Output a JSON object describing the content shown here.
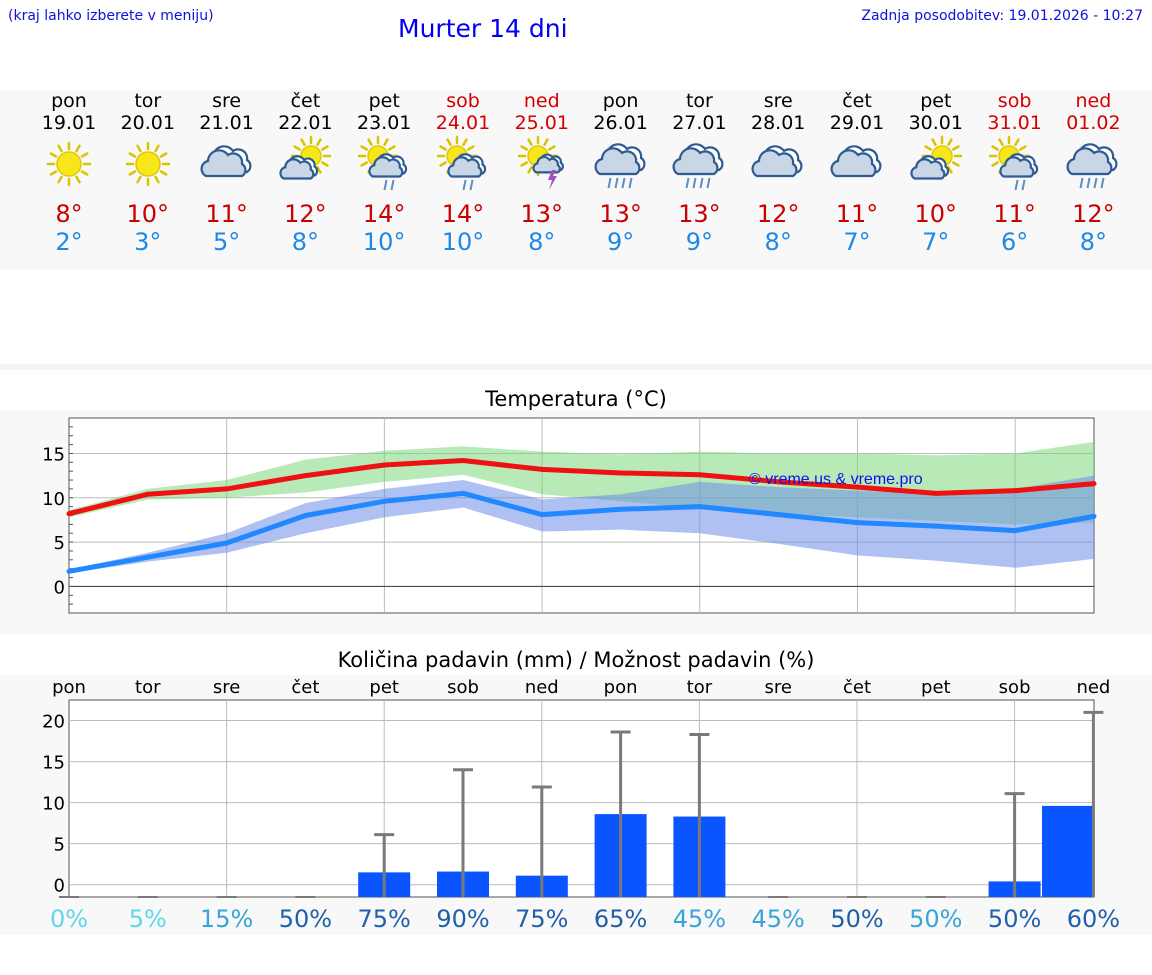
{
  "header": {
    "hint": "(kraj lahko izberete v meniju)",
    "title": "Murter 14 dni",
    "updated": "Zadnja posodobitev: 19.01.2026 - 10:27"
  },
  "days": [
    {
      "name": "pon",
      "date": "19.01",
      "weekend": false,
      "icon": "sunny-icon",
      "tmax": "8°",
      "tmin": "2°"
    },
    {
      "name": "tor",
      "date": "20.01",
      "weekend": false,
      "icon": "sunny-icon",
      "tmax": "10°",
      "tmin": "3°"
    },
    {
      "name": "sre",
      "date": "21.01",
      "weekend": false,
      "icon": "cloudy-icon",
      "tmax": "11°",
      "tmin": "5°"
    },
    {
      "name": "čet",
      "date": "22.01",
      "weekend": false,
      "icon": "partly-cloudy-icon",
      "tmax": "12°",
      "tmin": "8°"
    },
    {
      "name": "pet",
      "date": "23.01",
      "weekend": false,
      "icon": "sun-cloud-rain-icon",
      "tmax": "14°",
      "tmin": "10°"
    },
    {
      "name": "sob",
      "date": "24.01",
      "weekend": true,
      "icon": "sun-cloud-rain-icon",
      "tmax": "14°",
      "tmin": "10°"
    },
    {
      "name": "ned",
      "date": "25.01",
      "weekend": true,
      "icon": "sun-thunder-icon",
      "tmax": "13°",
      "tmin": "8°"
    },
    {
      "name": "pon",
      "date": "26.01",
      "weekend": false,
      "icon": "cloud-heavy-rain-icon",
      "tmax": "13°",
      "tmin": "9°"
    },
    {
      "name": "tor",
      "date": "27.01",
      "weekend": false,
      "icon": "cloud-heavy-rain-icon",
      "tmax": "13°",
      "tmin": "9°"
    },
    {
      "name": "sre",
      "date": "28.01",
      "weekend": false,
      "icon": "cloudy-icon",
      "tmax": "12°",
      "tmin": "8°"
    },
    {
      "name": "čet",
      "date": "29.01",
      "weekend": false,
      "icon": "cloudy-icon",
      "tmax": "11°",
      "tmin": "7°"
    },
    {
      "name": "pet",
      "date": "30.01",
      "weekend": false,
      "icon": "partly-cloudy-icon",
      "tmax": "10°",
      "tmin": "7°"
    },
    {
      "name": "sob",
      "date": "31.01",
      "weekend": true,
      "icon": "sun-cloud-rain-icon",
      "tmax": "11°",
      "tmin": "6°"
    },
    {
      "name": "ned",
      "date": "01.02",
      "weekend": true,
      "icon": "cloud-heavy-rain-icon",
      "tmax": "12°",
      "tmin": "8°"
    }
  ],
  "chart_data": [
    {
      "type": "line",
      "title": "Temperatura (°C)",
      "x": [
        0,
        1,
        2,
        3,
        4,
        5,
        6,
        7,
        8,
        9,
        10,
        11,
        12,
        13
      ],
      "yticks": [
        "15",
        "10",
        "5",
        "0"
      ],
      "ytick_values": [
        15,
        10,
        5,
        0
      ],
      "ylim": [
        -3,
        19
      ],
      "series": [
        {
          "name": "max",
          "color": "#ee1111",
          "values": [
            8.2,
            10.4,
            11.0,
            12.5,
            13.7,
            14.2,
            13.2,
            12.8,
            12.6,
            11.8,
            11.2,
            10.5,
            10.8,
            11.6
          ]
        },
        {
          "name": "min",
          "color": "#2288ff",
          "values": [
            1.7,
            3.3,
            4.9,
            8.0,
            9.6,
            10.5,
            8.1,
            8.7,
            9.0,
            8.1,
            7.2,
            6.8,
            6.3,
            7.9
          ]
        }
      ],
      "bands": [
        {
          "name": "max-range",
          "color": "#7dd87d",
          "low": [
            7.8,
            9.8,
            10.0,
            10.6,
            11.8,
            12.6,
            10.4,
            9.6,
            8.8,
            8.2,
            7.8,
            7.4,
            7.0,
            7.2
          ],
          "high": [
            8.6,
            11.0,
            12.0,
            14.3,
            15.3,
            15.8,
            15.2,
            14.9,
            15.2,
            15.0,
            15.0,
            14.8,
            15.0,
            16.3
          ]
        },
        {
          "name": "min-range",
          "color": "#6b8ee8",
          "low": [
            1.5,
            2.8,
            3.8,
            6.0,
            7.8,
            8.9,
            6.2,
            6.4,
            6.0,
            4.8,
            3.5,
            2.9,
            2.1,
            3.1
          ],
          "high": [
            1.9,
            3.8,
            6.0,
            9.4,
            11.0,
            12.0,
            9.8,
            10.4,
            11.8,
            11.2,
            10.8,
            10.4,
            11.0,
            12.5
          ]
        }
      ],
      "watermark": "© vreme.us & vreme.pro"
    },
    {
      "type": "bar",
      "title": "Količina padavin (mm) / Možnost padavin (%)",
      "categories": [
        "pon",
        "tor",
        "sre",
        "čet",
        "pet",
        "sob",
        "ned",
        "pon",
        "tor",
        "sre",
        "čet",
        "pet",
        "sob",
        "ned"
      ],
      "values": [
        0,
        0,
        0,
        0,
        1.5,
        1.6,
        1.1,
        8.6,
        8.3,
        0,
        0,
        0,
        0.4,
        9.6
      ],
      "error_max": [
        0,
        0,
        0,
        0,
        6.1,
        14.0,
        11.9,
        18.6,
        18.3,
        0,
        0,
        0,
        11.1,
        21.0
      ],
      "yticks": [
        "20",
        "15",
        "10",
        "5",
        "0"
      ],
      "ytick_values": [
        20,
        15,
        10,
        5,
        0
      ],
      "ylim": [
        -1.5,
        22.5
      ],
      "probabilities": [
        {
          "label": "0%",
          "color": "#5fd7e8"
        },
        {
          "label": "5%",
          "color": "#5fd7e8"
        },
        {
          "label": "15%",
          "color": "#3aa4d8"
        },
        {
          "label": "50%",
          "color": "#1f60a8"
        },
        {
          "label": "75%",
          "color": "#1f60a8"
        },
        {
          "label": "90%",
          "color": "#1f60a8"
        },
        {
          "label": "75%",
          "color": "#1f60a8"
        },
        {
          "label": "65%",
          "color": "#1f60a8"
        },
        {
          "label": "45%",
          "color": "#3aa4d8"
        },
        {
          "label": "45%",
          "color": "#3aa4d8"
        },
        {
          "label": "50%",
          "color": "#1f60a8"
        },
        {
          "label": "50%",
          "color": "#3aa4d8"
        },
        {
          "label": "50%",
          "color": "#1f60a8"
        },
        {
          "label": "60%",
          "color": "#1f60a8"
        }
      ]
    }
  ]
}
